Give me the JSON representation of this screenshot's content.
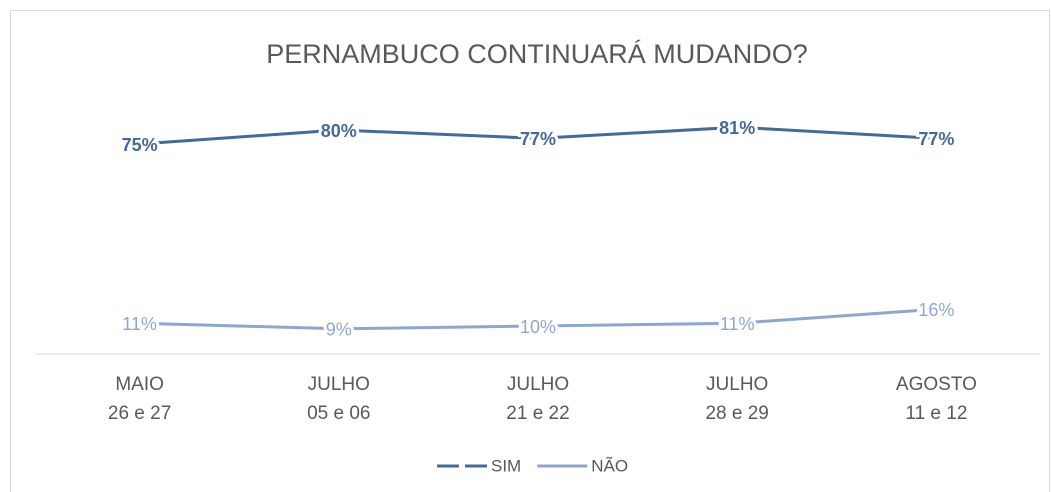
{
  "chart_data": {
    "type": "line",
    "title": "PERNAMBUCO CONTINUARÁ MUDANDO?",
    "categories": [
      [
        "MAIO",
        "26 e 27"
      ],
      [
        "JULHO",
        "05 e 06"
      ],
      [
        "JULHO",
        "21 e 22"
      ],
      [
        "JULHO",
        "28 e 29"
      ],
      [
        "AGOSTO",
        "11 e 12"
      ]
    ],
    "series": [
      {
        "name": "SIM",
        "color": "#44699c",
        "values": [
          75,
          80,
          77,
          81,
          77
        ],
        "value_labels": [
          "75%",
          "80%",
          "77%",
          "81%",
          "77%"
        ]
      },
      {
        "name": "NÃO",
        "color": "#8fa7cf",
        "values": [
          11,
          9,
          10,
          11,
          16
        ],
        "value_labels": [
          "11%",
          "9%",
          "10%",
          "11%",
          "16%"
        ]
      }
    ],
    "ylim": [
      0,
      90
    ],
    "legend": "bottom"
  }
}
